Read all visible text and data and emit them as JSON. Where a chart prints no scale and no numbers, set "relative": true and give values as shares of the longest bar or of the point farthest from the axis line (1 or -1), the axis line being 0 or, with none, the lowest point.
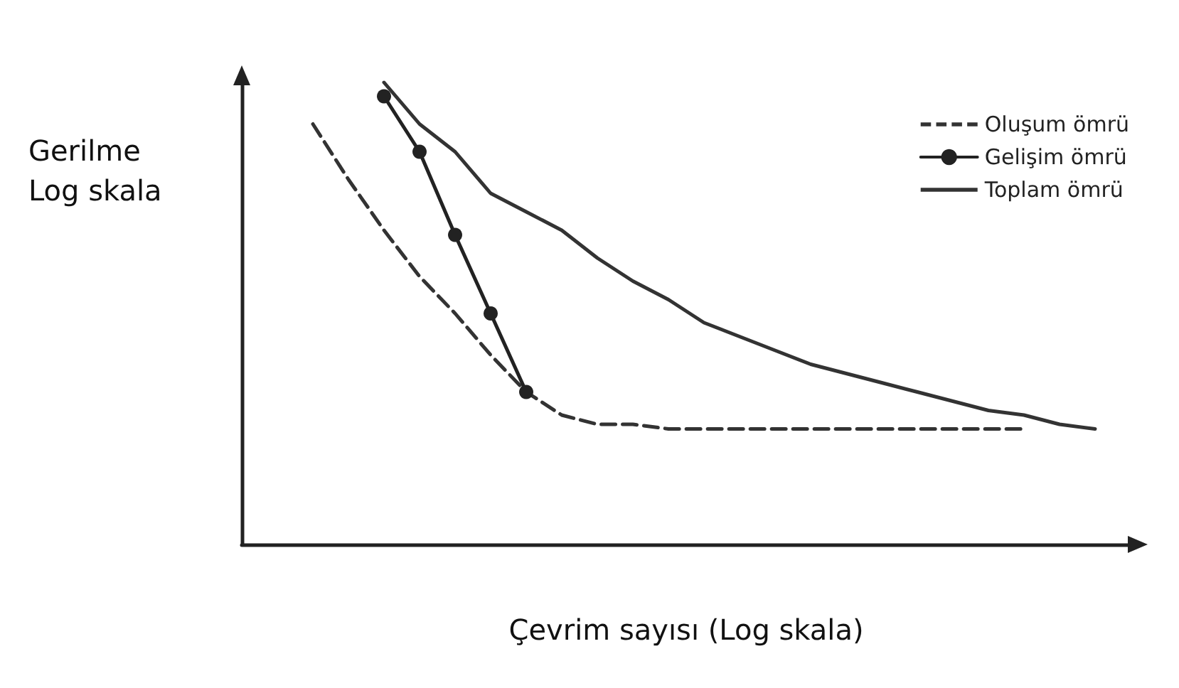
{
  "chart_data": {
    "type": "line",
    "relative": true,
    "ylabel": "Gerilme\nLog skala",
    "xlabel": "Çevrim sayısı (Log skala)",
    "grid": false,
    "legend": "top right",
    "categories": [
      null,
      null,
      null,
      null,
      null,
      null,
      null,
      null,
      null,
      null,
      null,
      null,
      null,
      null,
      null,
      null,
      null,
      null,
      null,
      null,
      null,
      null,
      null,
      null,
      null,
      null
    ],
    "series": [
      {
        "name": "Oluşum ömrü",
        "color": "#333333",
        "line_style": "dashed",
        "marker": "none",
        "values": [
          null,
          null,
          0.91,
          0.79,
          0.68,
          0.58,
          0.5,
          0.41,
          0.33,
          0.28,
          0.26,
          0.26,
          0.25,
          0.25,
          0.25,
          0.25,
          0.25,
          0.25,
          0.25,
          0.25,
          0.25,
          0.25,
          0.25,
          null,
          null,
          null
        ]
      },
      {
        "name": "Gelişim ömrü",
        "color": "#222222",
        "line_style": "solid",
        "marker": "circle",
        "values": [
          null,
          null,
          null,
          null,
          0.97,
          0.85,
          0.67,
          0.5,
          0.33,
          null,
          null,
          null,
          null,
          null,
          null,
          null,
          null,
          null,
          null,
          null,
          null,
          null,
          null,
          null,
          null,
          null
        ]
      },
      {
        "name": "Toplam ömrü",
        "color": "#333333",
        "line_style": "solid",
        "marker": "none",
        "values": [
          null,
          null,
          null,
          null,
          1,
          0.91,
          0.85,
          0.76,
          0.72,
          0.68,
          0.62,
          0.57,
          0.53,
          0.48,
          0.45,
          0.42,
          0.39,
          0.37,
          0.35,
          0.33,
          0.31,
          0.29,
          0.28,
          0.26,
          0.25,
          null
        ]
      }
    ]
  }
}
